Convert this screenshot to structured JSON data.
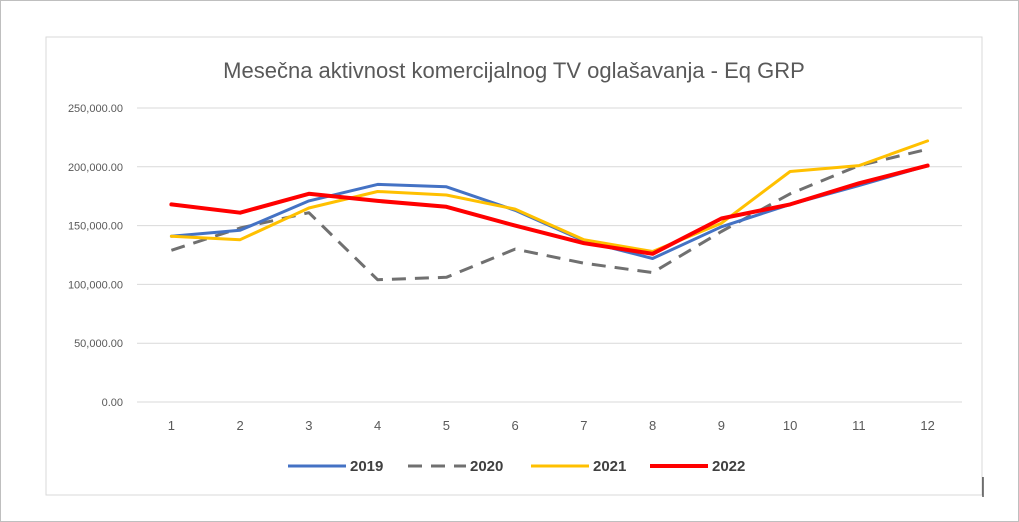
{
  "chart_data": {
    "type": "line",
    "title": "Mesečna aktivnost komercijalnog TV oglašavanja  - Eq GRP",
    "xlabel": "",
    "ylabel": "",
    "categories": [
      "1",
      "2",
      "3",
      "4",
      "5",
      "6",
      "7",
      "8",
      "9",
      "10",
      "11",
      "12"
    ],
    "ylim": [
      0,
      250000
    ],
    "y_ticks": [
      {
        "value": 0,
        "label": "0.00"
      },
      {
        "value": 50000,
        "label": "50,000.00"
      },
      {
        "value": 100000,
        "label": "100,000.00"
      },
      {
        "value": 150000,
        "label": "150,000.00"
      },
      {
        "value": 200000,
        "label": "200,000.00"
      },
      {
        "value": 250000,
        "label": "250,000.00"
      }
    ],
    "grid": true,
    "legend_position": "bottom",
    "series": [
      {
        "name": "2019",
        "color": "#4472c4",
        "dash": "solid",
        "values": [
          141000,
          146000,
          171000,
          185000,
          183000,
          163000,
          137000,
          122000,
          149000,
          168000,
          184000,
          201000
        ]
      },
      {
        "name": "2020",
        "color": "#707070",
        "dash": "dashed",
        "values": [
          129000,
          148000,
          161000,
          104000,
          106000,
          130000,
          118000,
          110000,
          145000,
          177000,
          201000,
          215000
        ]
      },
      {
        "name": "2021",
        "color": "#ffc000",
        "dash": "solid",
        "values": [
          141000,
          138000,
          165000,
          179000,
          176000,
          164000,
          138000,
          128000,
          152000,
          196000,
          201000,
          222000
        ]
      },
      {
        "name": "2022",
        "color": "#ff0000",
        "dash": "solid",
        "values": [
          168000,
          161000,
          177000,
          171000,
          166000,
          150000,
          135000,
          126000,
          156000,
          168000,
          186000,
          201000
        ]
      }
    ]
  }
}
